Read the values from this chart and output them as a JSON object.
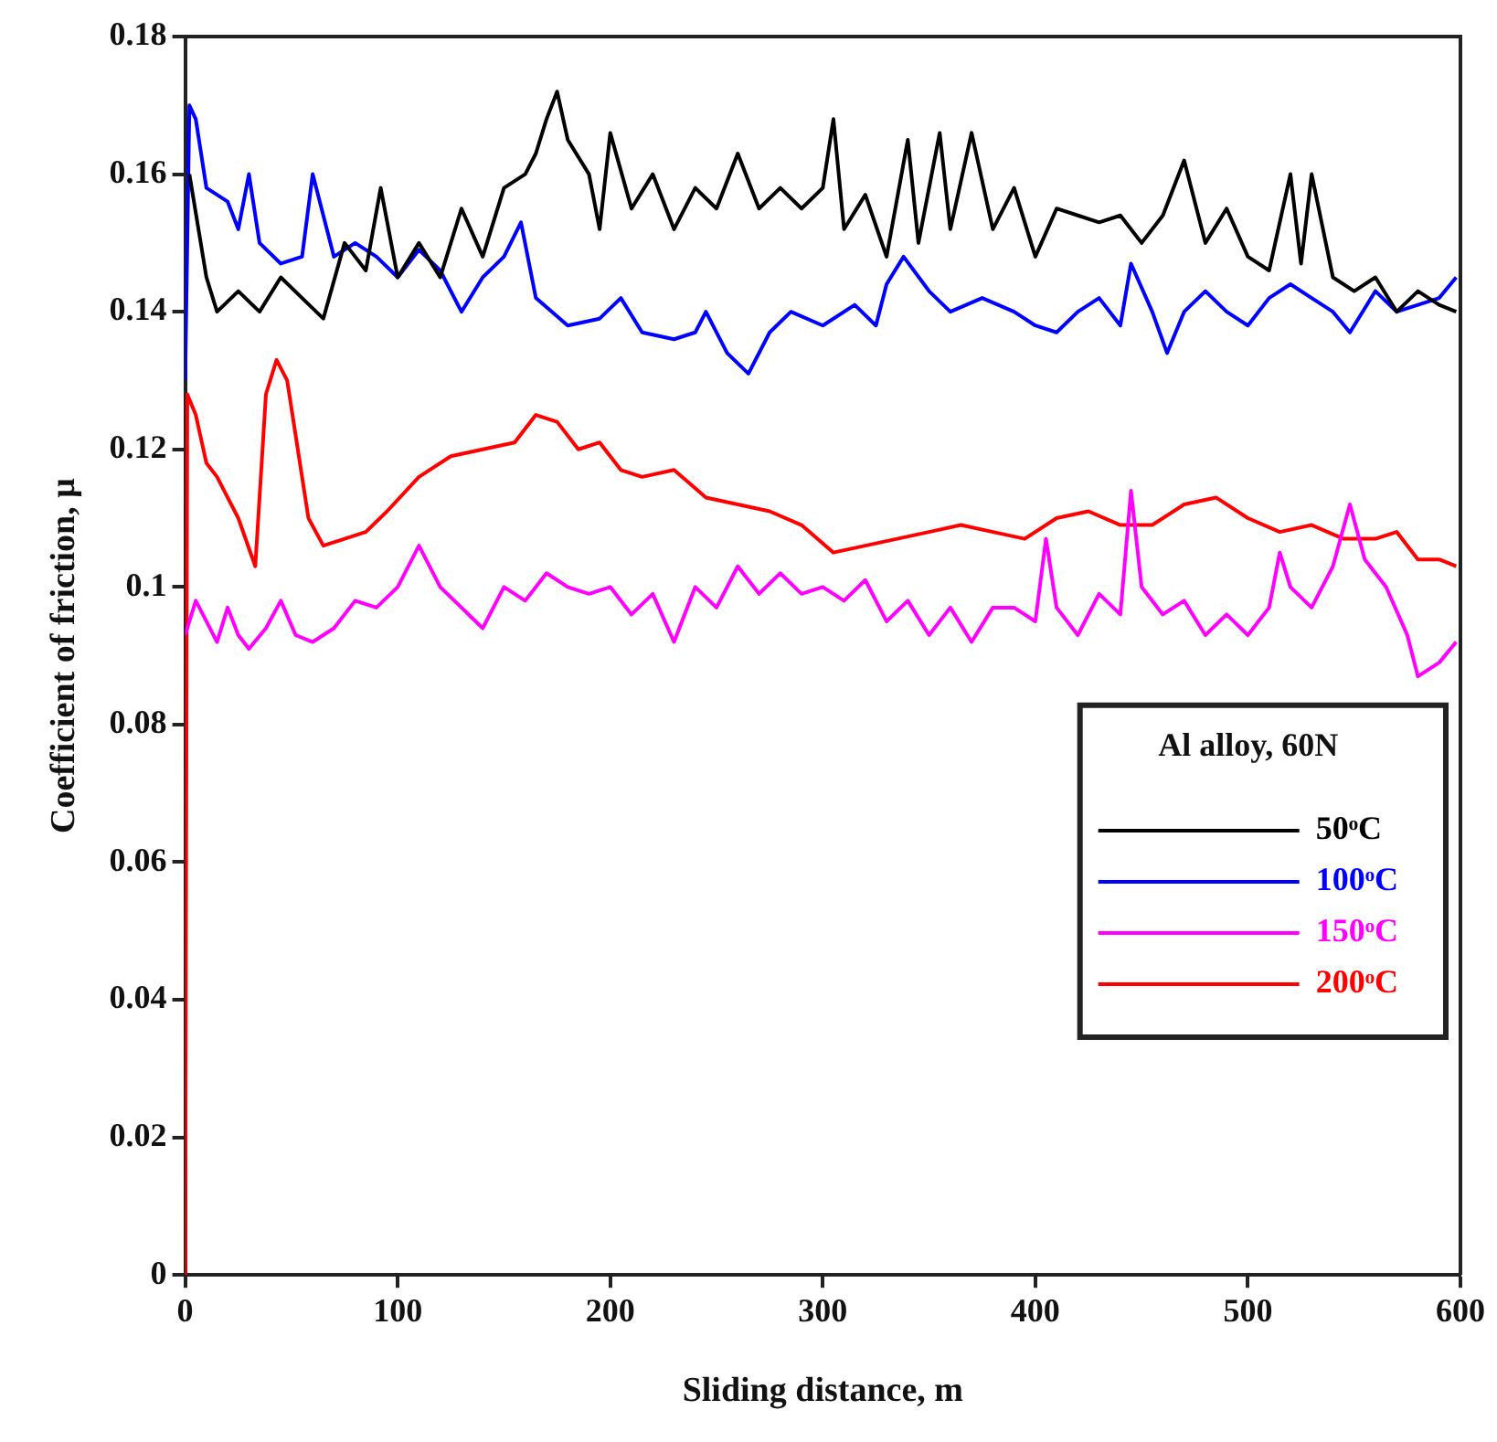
{
  "chart_data": {
    "type": "line",
    "xlabel": "Sliding distance, m",
    "ylabel": "Coefficient of friction, μ",
    "legend_title": "Al alloy, 60N",
    "legend": "right",
    "grid": false,
    "marker": "none",
    "line_style": "solid",
    "xlim": [
      0,
      600
    ],
    "xticks": [
      0,
      100,
      200,
      300,
      400,
      500,
      600
    ],
    "ylim": [
      0,
      0.18
    ],
    "yticks": [
      0,
      0.02,
      0.04,
      0.06,
      0.08,
      0.1,
      0.12,
      0.14,
      0.16,
      0.18
    ],
    "series": [
      {
        "name": "50ᵒC",
        "color": "#000000",
        "x": [
          2,
          10,
          15,
          25,
          35,
          45,
          55,
          65,
          75,
          85,
          92,
          100,
          110,
          120,
          130,
          140,
          150,
          160,
          165,
          170,
          175,
          180,
          190,
          195,
          200,
          210,
          220,
          230,
          240,
          250,
          260,
          270,
          280,
          290,
          300,
          305,
          310,
          320,
          330,
          340,
          345,
          355,
          360,
          370,
          380,
          390,
          400,
          410,
          420,
          430,
          440,
          450,
          460,
          470,
          480,
          490,
          500,
          510,
          520,
          525,
          530,
          540,
          550,
          560,
          570,
          580,
          590,
          598
        ],
        "values": [
          0.16,
          0.145,
          0.14,
          0.143,
          0.14,
          0.145,
          0.142,
          0.139,
          0.15,
          0.146,
          0.158,
          0.145,
          0.15,
          0.145,
          0.155,
          0.148,
          0.158,
          0.16,
          0.163,
          0.168,
          0.172,
          0.165,
          0.16,
          0.152,
          0.166,
          0.155,
          0.16,
          0.152,
          0.158,
          0.155,
          0.163,
          0.155,
          0.158,
          0.155,
          0.158,
          0.168,
          0.152,
          0.157,
          0.148,
          0.165,
          0.15,
          0.166,
          0.152,
          0.166,
          0.152,
          0.158,
          0.148,
          0.155,
          0.154,
          0.153,
          0.154,
          0.15,
          0.154,
          0.162,
          0.15,
          0.155,
          0.148,
          0.146,
          0.16,
          0.147,
          0.16,
          0.145,
          0.143,
          0.145,
          0.14,
          0.143,
          0.141,
          0.14
        ]
      },
      {
        "name": "100ᵒC",
        "color": "#0000ff",
        "x": [
          0,
          2,
          5,
          10,
          20,
          25,
          30,
          35,
          45,
          55,
          60,
          70,
          80,
          90,
          100,
          110,
          120,
          130,
          140,
          150,
          158,
          165,
          180,
          195,
          205,
          215,
          230,
          240,
          245,
          255,
          265,
          275,
          285,
          300,
          315,
          325,
          330,
          338,
          350,
          360,
          375,
          390,
          400,
          410,
          420,
          430,
          440,
          445,
          455,
          462,
          470,
          480,
          490,
          500,
          510,
          520,
          530,
          540,
          548,
          560,
          570,
          580,
          590,
          598
        ],
        "values": [
          0.13,
          0.17,
          0.168,
          0.158,
          0.156,
          0.152,
          0.16,
          0.15,
          0.147,
          0.148,
          0.16,
          0.148,
          0.15,
          0.148,
          0.145,
          0.149,
          0.146,
          0.14,
          0.145,
          0.148,
          0.153,
          0.142,
          0.138,
          0.139,
          0.142,
          0.137,
          0.136,
          0.137,
          0.14,
          0.134,
          0.131,
          0.137,
          0.14,
          0.138,
          0.141,
          0.138,
          0.144,
          0.148,
          0.143,
          0.14,
          0.142,
          0.14,
          0.138,
          0.137,
          0.14,
          0.142,
          0.138,
          0.147,
          0.14,
          0.134,
          0.14,
          0.143,
          0.14,
          0.138,
          0.142,
          0.144,
          0.142,
          0.14,
          0.137,
          0.143,
          0.14,
          0.141,
          0.142,
          0.145
        ]
      },
      {
        "name": "150ᵒC",
        "color": "#ff00ff",
        "x": [
          0,
          5,
          10,
          15,
          20,
          25,
          30,
          38,
          45,
          52,
          60,
          70,
          80,
          90,
          100,
          110,
          120,
          130,
          140,
          150,
          160,
          170,
          180,
          190,
          200,
          210,
          220,
          230,
          240,
          250,
          260,
          270,
          280,
          290,
          300,
          310,
          320,
          330,
          340,
          350,
          360,
          370,
          380,
          390,
          400,
          405,
          410,
          420,
          430,
          440,
          445,
          450,
          460,
          470,
          480,
          490,
          500,
          510,
          515,
          520,
          530,
          540,
          548,
          555,
          565,
          575,
          580,
          590,
          598
        ],
        "values": [
          0.093,
          0.098,
          0.095,
          0.092,
          0.097,
          0.093,
          0.091,
          0.094,
          0.098,
          0.093,
          0.092,
          0.094,
          0.098,
          0.097,
          0.1,
          0.106,
          0.1,
          0.097,
          0.094,
          0.1,
          0.098,
          0.102,
          0.1,
          0.099,
          0.1,
          0.096,
          0.099,
          0.092,
          0.1,
          0.097,
          0.103,
          0.099,
          0.102,
          0.099,
          0.1,
          0.098,
          0.101,
          0.095,
          0.098,
          0.093,
          0.097,
          0.092,
          0.097,
          0.097,
          0.095,
          0.107,
          0.097,
          0.093,
          0.099,
          0.096,
          0.114,
          0.1,
          0.096,
          0.098,
          0.093,
          0.096,
          0.093,
          0.097,
          0.105,
          0.1,
          0.097,
          0.103,
          0.112,
          0.104,
          0.1,
          0.093,
          0.087,
          0.089,
          0.092
        ]
      },
      {
        "name": "200ᵒC",
        "color": "#ff0000",
        "x": [
          0,
          1,
          5,
          10,
          15,
          25,
          33,
          38,
          43,
          48,
          52,
          58,
          65,
          75,
          85,
          95,
          110,
          125,
          140,
          155,
          165,
          175,
          185,
          195,
          205,
          215,
          230,
          245,
          260,
          275,
          290,
          305,
          320,
          335,
          350,
          365,
          380,
          395,
          410,
          425,
          440,
          455,
          470,
          485,
          500,
          515,
          530,
          545,
          560,
          570,
          580,
          590,
          598
        ],
        "values": [
          0,
          0.128,
          0.125,
          0.118,
          0.116,
          0.11,
          0.103,
          0.128,
          0.133,
          0.13,
          0.122,
          0.11,
          0.106,
          0.107,
          0.108,
          0.111,
          0.116,
          0.119,
          0.12,
          0.121,
          0.125,
          0.124,
          0.12,
          0.121,
          0.117,
          0.116,
          0.117,
          0.113,
          0.112,
          0.111,
          0.109,
          0.105,
          0.106,
          0.107,
          0.108,
          0.109,
          0.108,
          0.107,
          0.11,
          0.111,
          0.109,
          0.109,
          0.112,
          0.113,
          0.11,
          0.108,
          0.109,
          0.107,
          0.107,
          0.108,
          0.104,
          0.104,
          0.103
        ]
      }
    ]
  }
}
